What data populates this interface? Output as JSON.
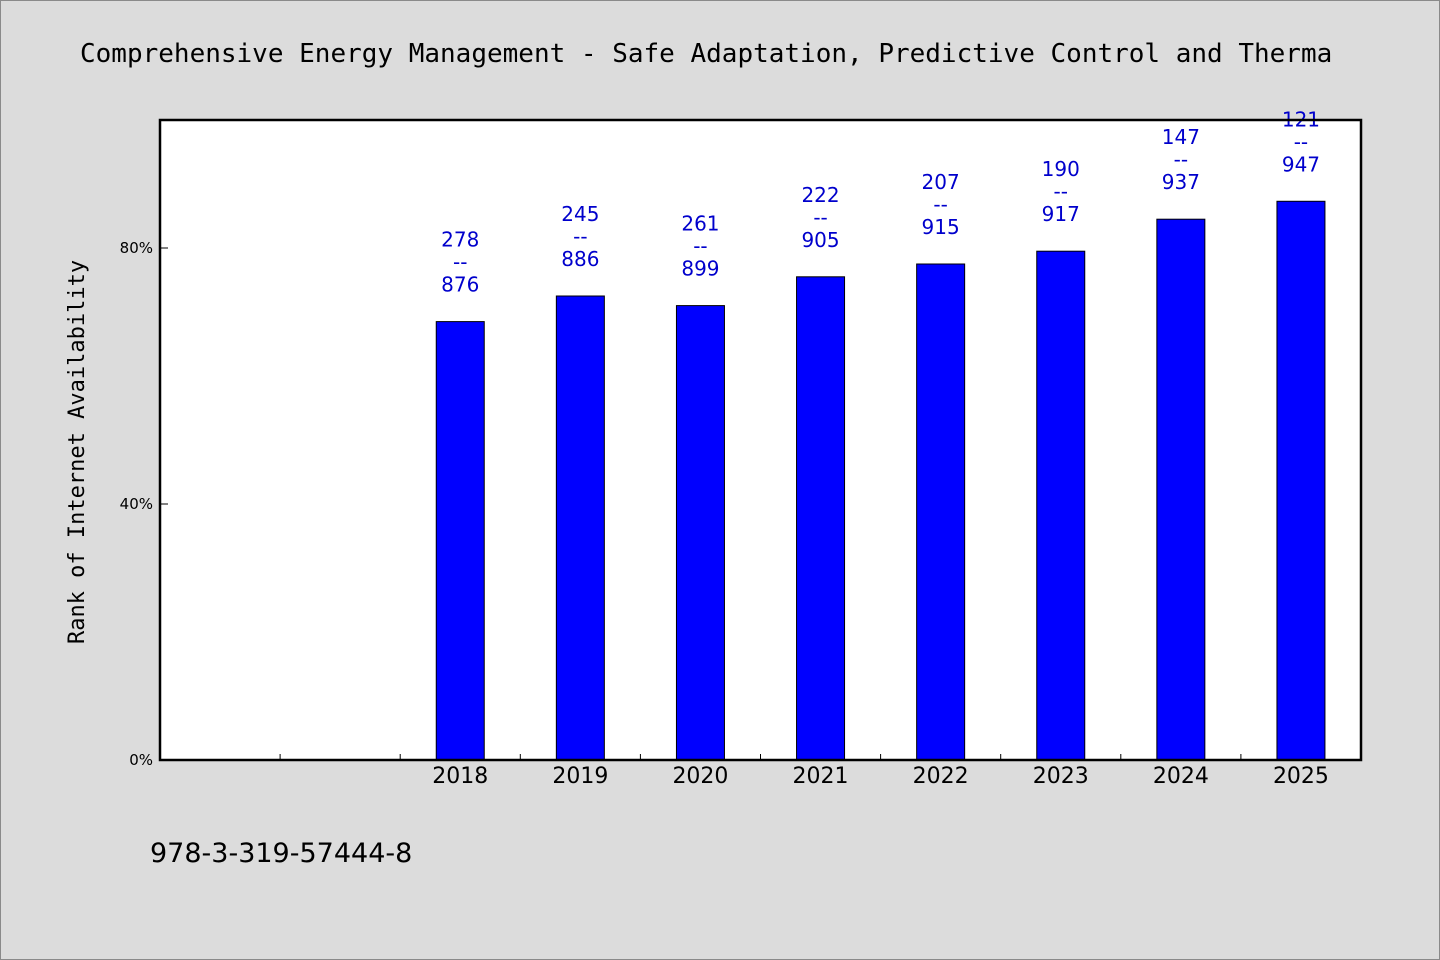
{
  "chart_data": {
    "type": "bar",
    "title": "Comprehensive Energy Management - Safe Adaptation, Predictive Control and Therma",
    "ylabel": "Rank of Internet Availability",
    "xlabel": "",
    "categories": [
      "",
      "",
      "2018",
      "2019",
      "2020",
      "2021",
      "2022",
      "2023",
      "2024",
      "2025"
    ],
    "values": [
      null,
      null,
      68.5,
      72.5,
      71.0,
      75.5,
      77.5,
      79.5,
      84.5,
      87.3
    ],
    "data_labels": [
      null,
      null,
      {
        "top": "278",
        "sep": "--",
        "bottom": "876"
      },
      {
        "top": "245",
        "sep": "--",
        "bottom": "886"
      },
      {
        "top": "261",
        "sep": "--",
        "bottom": "899"
      },
      {
        "top": "222",
        "sep": "--",
        "bottom": "905"
      },
      {
        "top": "207",
        "sep": "--",
        "bottom": "915"
      },
      {
        "top": "190",
        "sep": "--",
        "bottom": "917"
      },
      {
        "top": "147",
        "sep": "--",
        "bottom": "937"
      },
      {
        "top": "121",
        "sep": "--",
        "bottom": "947"
      }
    ],
    "yticks": [
      0,
      40,
      80
    ],
    "ytick_labels": [
      "0%",
      "40%",
      "80%"
    ],
    "ylim": [
      0,
      100
    ],
    "grid": false,
    "legend": "none",
    "bar_color": "#0000ff",
    "label_color": "#0000cc",
    "plot_background": "#ffffff",
    "page_background": "#dcdcdc"
  },
  "footer": {
    "isbn": "978-3-319-57444-8"
  }
}
